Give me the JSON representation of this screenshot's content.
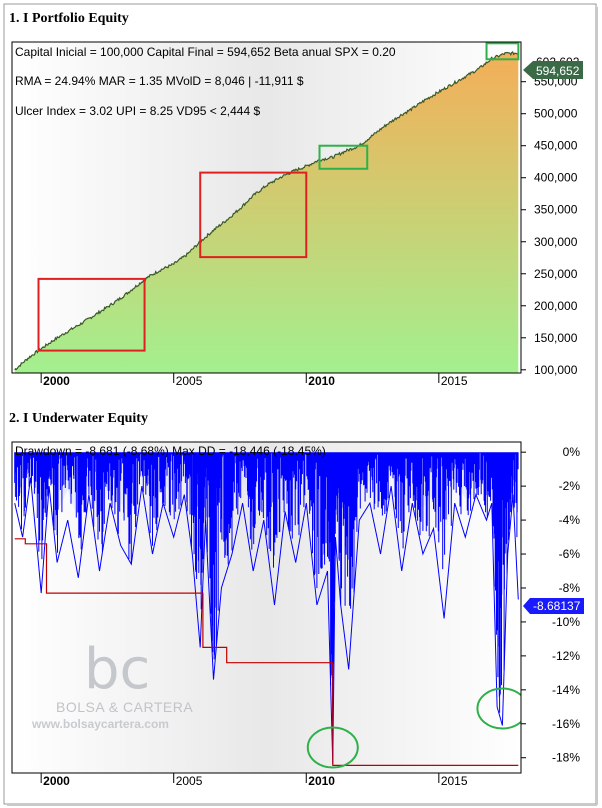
{
  "panels": {
    "top_title": "1. I Portfolio Equity",
    "bottom_title": "2. I Underwater Equity"
  },
  "equity_info": {
    "line1": "Capital Inicial = 100,000  Capital Final = 594,652  Beta anual SPX = 0.20",
    "line2": "RMA = 24.94%  MAR = 1.35  MVolD = 8,046 | -11,911 $",
    "line3": "Ulcer Index = 3.02  UPI = 8.25  VD95 < 2,444 $",
    "last_value_label": "594,652",
    "last_value_ghost": "602,602"
  },
  "drawdown_info": {
    "line1": "Drawdown = -8,681 (-8.68%)     Max DD = -18,446 (-18.45%)",
    "last_value_label": "-8.68137"
  },
  "watermark": {
    "logo": "bc",
    "name": "BOLSA & CARTERA",
    "url": "www.bolsaycartera.com"
  },
  "colors": {
    "equity_fill_top": "#f4ae58",
    "equity_fill_bottom": "#a3f08f",
    "equity_line": "#3a5a2a",
    "drawdown_line": "#0000ff",
    "maxdd_step": "#c00000",
    "box_red": "#e02020",
    "box_green": "#2eb04a",
    "value_tag_top": "#3a6a46",
    "value_tag_bottom": "#1a1aff"
  },
  "chart_data": [
    {
      "type": "area",
      "title": "1. I Portfolio Equity",
      "x_ticks": [
        "2000",
        "2005",
        "2010",
        "2015"
      ],
      "x_ticks_bold": [
        "2000",
        "2010"
      ],
      "y_ticks": [
        "100,000",
        "150,000",
        "200,000",
        "250,000",
        "300,000",
        "350,000",
        "400,000",
        "450,000",
        "500,000",
        "550,000"
      ],
      "ylim": [
        95000,
        612000
      ],
      "xlim": [
        1998.9,
        2018.1
      ],
      "series": [
        {
          "x": [
            1999.0,
            1999.5,
            2000.0,
            2000.5,
            2001.0,
            2001.5,
            2002.0,
            2002.5,
            2003.0,
            2003.5,
            2004.0,
            2004.5,
            2005.0,
            2005.5,
            2006.0,
            2006.5,
            2007.0,
            2007.5,
            2008.0,
            2008.5,
            2009.0,
            2009.5,
            2010.0,
            2010.5,
            2011.0,
            2011.5,
            2012.0,
            2012.5,
            2013.0,
            2013.5,
            2014.0,
            2014.5,
            2015.0,
            2015.5,
            2016.0,
            2016.5,
            2017.0,
            2017.5,
            2018.0
          ],
          "values": [
            100000,
            118000,
            133000,
            147000,
            160000,
            172000,
            185000,
            198000,
            212000,
            228000,
            244000,
            256000,
            265000,
            280000,
            300000,
            318000,
            334000,
            352000,
            372000,
            388000,
            400000,
            410000,
            418000,
            428000,
            432000,
            442000,
            450000,
            466000,
            482000,
            496000,
            508000,
            522000,
            534000,
            546000,
            558000,
            570000,
            586000,
            594000,
            594652
          ]
        }
      ],
      "annotations": {
        "red_boxes": [
          {
            "x": [
              1999.9,
              2003.9
            ],
            "y": [
              130000,
              242000
            ]
          },
          {
            "x": [
              2006.0,
              2010.0
            ],
            "y": [
              276000,
              408000
            ]
          }
        ],
        "green_boxes": [
          {
            "x": [
              2010.5,
              2012.3
            ],
            "y": [
              414000,
              450000
            ]
          },
          {
            "x": [
              2016.8,
              2018.0
            ],
            "y": [
              585000,
              610000
            ]
          }
        ]
      }
    },
    {
      "type": "area",
      "title": "2. I Underwater Equity",
      "x_ticks": [
        "2000",
        "2005",
        "2010",
        "2015"
      ],
      "x_ticks_bold": [
        "2000",
        "2010"
      ],
      "y_ticks": [
        "0%",
        "-2%",
        "-4%",
        "-6%",
        "-8%",
        "-10%",
        "-12%",
        "-14%",
        "-16%",
        "-18%"
      ],
      "ylim": [
        -18.9,
        0.6
      ],
      "xlim": [
        1998.9,
        2018.1
      ],
      "series": [
        {
          "name": "Drawdown",
          "x": [
            1999.0,
            1999.3,
            1999.6,
            2000.0,
            2000.3,
            2000.6,
            2001.0,
            2001.4,
            2001.8,
            2002.2,
            2002.6,
            2003.0,
            2003.4,
            2003.8,
            2004.2,
            2004.6,
            2005.0,
            2005.4,
            2005.7,
            2006.0,
            2006.2,
            2006.5,
            2006.8,
            2007.2,
            2007.6,
            2008.0,
            2008.4,
            2008.8,
            2009.2,
            2009.6,
            2010.0,
            2010.4,
            2010.8,
            2011.0,
            2011.1,
            2011.3,
            2011.6,
            2012.0,
            2012.4,
            2012.8,
            2013.2,
            2013.6,
            2014.0,
            2014.4,
            2014.8,
            2015.2,
            2015.6,
            2016.0,
            2016.4,
            2016.8,
            2017.0,
            2017.2,
            2017.4,
            2017.6,
            2017.8,
            2018.0
          ],
          "values": [
            -3.0,
            -5.0,
            -1.5,
            -8.3,
            -2.0,
            -6.5,
            -4.0,
            -7.4,
            -2.5,
            -7.0,
            -3.0,
            -5.5,
            -6.6,
            -2.0,
            -6.0,
            -3.0,
            -5.0,
            -2.5,
            -6.0,
            -11.5,
            -4.0,
            -13.4,
            -8.0,
            -6.0,
            -3.0,
            -7.0,
            -4.0,
            -9.0,
            -3.5,
            -6.5,
            -3.0,
            -9.0,
            -7.0,
            -18.4,
            -5.0,
            -9.0,
            -12.8,
            -4.0,
            -3.0,
            -6.0,
            -2.0,
            -7.0,
            -3.0,
            -6.0,
            -4.5,
            -9.8,
            -3.0,
            -5.0,
            -2.5,
            -4.0,
            -3.0,
            -15.0,
            -16.1,
            -6.0,
            -2.5,
            -8.68
          ]
        },
        {
          "name": "Max DD",
          "x": [
            1999.0,
            1999.4,
            1999.4,
            2000.2,
            2000.2,
            2006.1,
            2006.1,
            2007.0,
            2007.0,
            2011.0,
            2011.0,
            2018.0
          ],
          "values": [
            -5.1,
            -5.1,
            -5.4,
            -5.4,
            -8.3,
            -8.3,
            -11.5,
            -11.5,
            -12.4,
            -12.4,
            -18.45,
            -18.45
          ]
        }
      ],
      "annotations": {
        "green_circles": [
          {
            "x": 2011.0,
            "y": -17.4
          },
          {
            "x": 2017.4,
            "y": -15.1
          }
        ]
      }
    }
  ]
}
